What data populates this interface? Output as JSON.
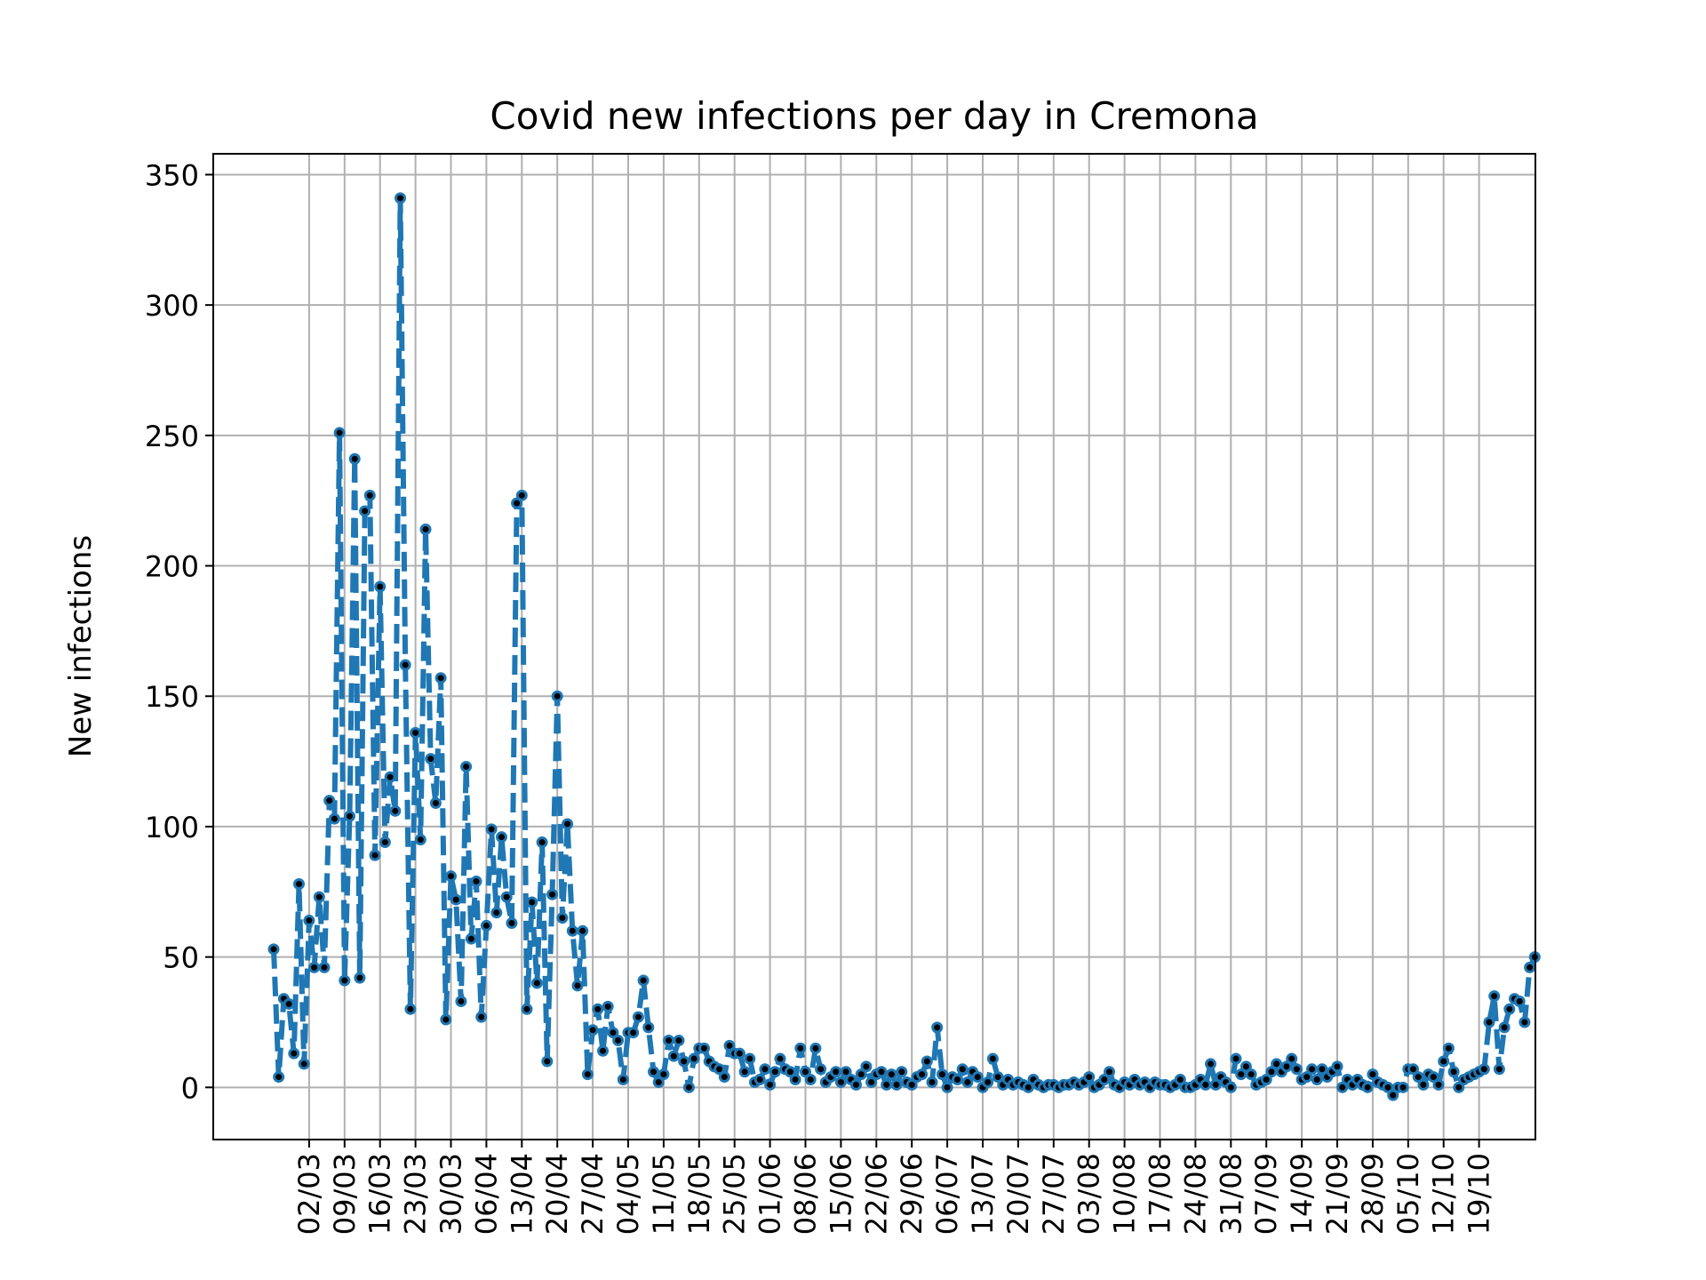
{
  "chart_data": {
    "type": "line",
    "title": "Covid new infections per day in Cremona",
    "xlabel": "",
    "ylabel": "New infections",
    "ylim": [
      -20,
      358
    ],
    "yticks": [
      0,
      50,
      100,
      150,
      200,
      250,
      300,
      350
    ],
    "xtick_labels": [
      "02/03",
      "09/03",
      "16/03",
      "23/03",
      "30/03",
      "06/04",
      "13/04",
      "20/04",
      "27/04",
      "04/05",
      "11/05",
      "18/05",
      "25/05",
      "01/06",
      "08/06",
      "15/06",
      "22/06",
      "29/06",
      "06/07",
      "13/07",
      "20/07",
      "27/07",
      "03/08",
      "10/08",
      "17/08",
      "24/08",
      "31/08",
      "07/09",
      "14/09",
      "21/09",
      "28/09",
      "05/10",
      "12/10",
      "19/10"
    ],
    "grid": true,
    "x_start_date": "2020-02-24",
    "line_color": "#1f77b4",
    "marker_color": "#000000",
    "series": [
      {
        "values": [
          53,
          4,
          34,
          32,
          13,
          78,
          9,
          64,
          46,
          73,
          46,
          110,
          103,
          251,
          41,
          104,
          241,
          42,
          221,
          227,
          89,
          192,
          94,
          119,
          106,
          341,
          162,
          30,
          136,
          95,
          214,
          126,
          109,
          157,
          26,
          81,
          72,
          33,
          123,
          57,
          79,
          27,
          62,
          99,
          67,
          96,
          73,
          63,
          224,
          227,
          30,
          71,
          40,
          94,
          10,
          74,
          150,
          65,
          101,
          60,
          39,
          60,
          5,
          22,
          30,
          14,
          31,
          21,
          18,
          3,
          21,
          21,
          27,
          41,
          23,
          6,
          2,
          5,
          18,
          12,
          18,
          10,
          0,
          11,
          15,
          15,
          10,
          8,
          7,
          4,
          16,
          13,
          13,
          6,
          11,
          2,
          3,
          7,
          1,
          6,
          11,
          7,
          6,
          3,
          15,
          6,
          3,
          15,
          7,
          2,
          4,
          6,
          2,
          6,
          3,
          1,
          5,
          8,
          2,
          5,
          6,
          1,
          5,
          1,
          6,
          2,
          1,
          4,
          5,
          10,
          2,
          23,
          5,
          0,
          4,
          3,
          7,
          2,
          6,
          4,
          0,
          2,
          11,
          4,
          1,
          3,
          1,
          2,
          1,
          0,
          3,
          1,
          0,
          1,
          1,
          0,
          1,
          1,
          2,
          1,
          2,
          4,
          0,
          1,
          3,
          6,
          1,
          0,
          2,
          1,
          3,
          1,
          2,
          0,
          2,
          1,
          1,
          0,
          1,
          3,
          0,
          0,
          1,
          3,
          1,
          9,
          1,
          4,
          2,
          0,
          11,
          5,
          8,
          5,
          1,
          2,
          3,
          6,
          9,
          6,
          8,
          11,
          7,
          3,
          4,
          7,
          3,
          7,
          4,
          6,
          8,
          0,
          3,
          1,
          3,
          1,
          0,
          5,
          2,
          1,
          0,
          -3,
          0,
          0,
          7,
          7,
          4,
          1,
          5,
          4,
          1,
          10,
          15,
          6,
          0,
          3,
          4,
          5,
          6,
          7,
          25,
          35,
          7,
          23,
          30,
          34,
          33,
          25,
          46,
          50
        ]
      }
    ]
  }
}
